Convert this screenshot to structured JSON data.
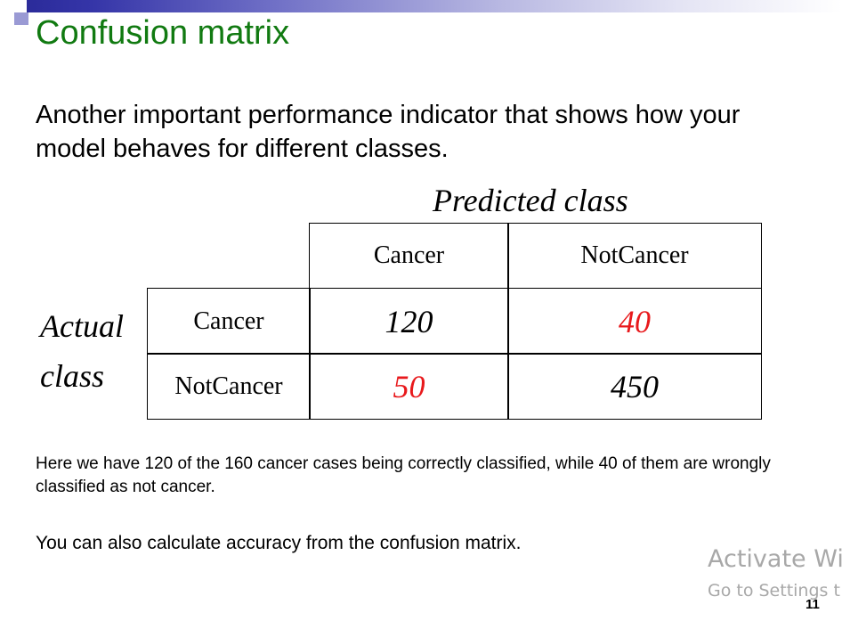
{
  "slide": {
    "title": "Confusion matrix",
    "intro": "Another important performance indicator that shows how your model behaves for different classes.",
    "page_number": "11"
  },
  "matrix": {
    "predicted_label": "Predicted class",
    "actual_label": "Actual class",
    "columns": [
      "Cancer",
      "NotCancer"
    ],
    "rows": [
      {
        "label": "Cancer",
        "values": [
          "120",
          "40"
        ]
      },
      {
        "label": "NotCancer",
        "values": [
          "50",
          "450"
        ]
      }
    ],
    "highlight_color": "#e8191c"
  },
  "notes": {
    "note1": "Here we have 120 of the 160 cancer cases being correctly classified, while 40 of them are wrongly classified as not cancer.",
    "note2": "You can also calculate accuracy from the confusion matrix."
  },
  "watermark": {
    "line1": "Activate Wi",
    "line2": "Go to Settings t"
  }
}
